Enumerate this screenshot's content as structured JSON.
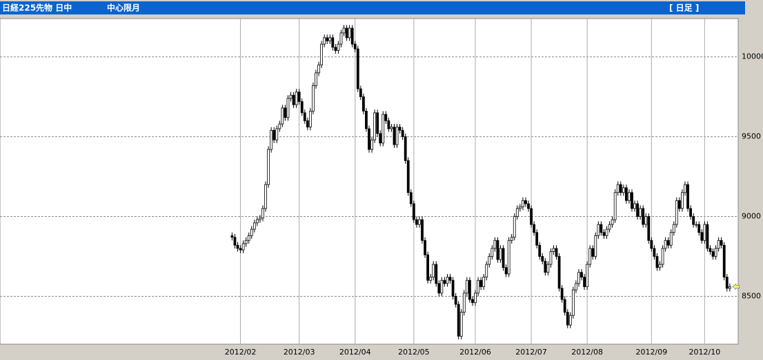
{
  "chart_data": {
    "type": "candlestick",
    "title": "日経225先物 日中",
    "subtitle": "中心限月",
    "annotation": "[ 日足 ]",
    "open": [
      8880,
      8870,
      8820,
      8800,
      8790,
      8830,
      8850,
      8880,
      8920,
      8960,
      8980,
      8990,
      9050,
      9200,
      9420,
      9540,
      9480,
      9550,
      9580,
      9680,
      9620,
      9740,
      9760,
      9700,
      9780,
      9720,
      9650,
      9600,
      9560,
      9660,
      9820,
      9900,
      9950,
      10080,
      10120,
      10100,
      10120,
      10060,
      10040,
      10080,
      10150,
      10180,
      10120,
      10180,
      10080,
      10050,
      9800,
      9750,
      9660,
      9550,
      9420,
      9480,
      9650,
      9520,
      9460,
      9640,
      9600,
      9550,
      9560,
      9450,
      9560,
      9540,
      9500,
      9350,
      9150,
      9080,
      8980,
      8950,
      8980,
      8850,
      8760,
      8600,
      8620,
      8700,
      8580,
      8520,
      8600,
      8580,
      8620,
      8600,
      8500,
      8450,
      8250,
      8400,
      8520,
      8600,
      8480,
      8460,
      8520,
      8600,
      8560,
      8620,
      8700,
      8750,
      8800,
      8850,
      8730,
      8800,
      8680,
      8640,
      8850,
      8870,
      9000,
      9050,
      9060,
      9100,
      9080,
      9050,
      8950,
      8900,
      8820,
      8750,
      8720,
      8650,
      8700,
      8780,
      8800,
      8750,
      8550,
      8480,
      8400,
      8320,
      8380,
      8540,
      8580,
      8650,
      8620,
      8560,
      8700,
      8800,
      8750,
      8880,
      8950,
      8900,
      8880,
      8920,
      8950,
      8980,
      9150,
      9200,
      9150,
      9180,
      9100,
      9150,
      9050,
      9080,
      9000,
      9050,
      8950,
      9000,
      8850,
      8800,
      8750,
      8680,
      8700,
      8800,
      8850,
      8820,
      8900,
      8950,
      9100,
      9050,
      9150,
      9200,
      9050,
      9000,
      8950,
      8950,
      8900,
      8850,
      8950,
      8800,
      8780,
      8750,
      8800,
      8850,
      8820,
      8620,
      8550
    ],
    "high": [
      8900,
      8890,
      8840,
      8820,
      8850,
      8870,
      8900,
      8940,
      8980,
      9000,
      9010,
      9070,
      9220,
      9440,
      9560,
      9560,
      9570,
      9600,
      9700,
      9700,
      9760,
      9780,
      9780,
      9800,
      9800,
      9740,
      9670,
      9620,
      9680,
      9840,
      9920,
      9970,
      10100,
      10140,
      10140,
      10140,
      10140,
      10080,
      10100,
      10170,
      10200,
      10200,
      10200,
      10200,
      10100,
      10070,
      9820,
      9770,
      9680,
      9570,
      9500,
      9670,
      9670,
      9540,
      9660,
      9660,
      9620,
      9580,
      9580,
      9580,
      9580,
      9560,
      9520,
      9370,
      9170,
      9100,
      9000,
      9000,
      9000,
      8870,
      8780,
      8640,
      8720,
      8720,
      8600,
      8620,
      8620,
      8640,
      8640,
      8620,
      8520,
      8470,
      8420,
      8540,
      8620,
      8620,
      8500,
      8540,
      8620,
      8620,
      8640,
      8720,
      8770,
      8820,
      8870,
      8870,
      8820,
      8820,
      8700,
      8870,
      8890,
      9020,
      9070,
      9080,
      9120,
      9120,
      9100,
      9070,
      8970,
      8920,
      8840,
      8770,
      8740,
      8720,
      8800,
      8820,
      8820,
      8770,
      8570,
      8500,
      8420,
      8400,
      8560,
      8600,
      8670,
      8670,
      8640,
      8720,
      8820,
      8820,
      8900,
      8970,
      8970,
      8920,
      8940,
      8970,
      9000,
      9170,
      9220,
      9220,
      9200,
      9200,
      9170,
      9170,
      9100,
      9100,
      9070,
      9070,
      9020,
      9020,
      8870,
      8820,
      8770,
      8720,
      8820,
      8870,
      8870,
      8920,
      8970,
      9120,
      9120,
      9170,
      9220,
      9220,
      9070,
      9020,
      8970,
      8970,
      8920,
      8970,
      8970,
      8820,
      8800,
      8820,
      8870,
      8870,
      8840,
      8640,
      8580
    ],
    "low": [
      8850,
      8800,
      8780,
      8770,
      8770,
      8810,
      8830,
      8860,
      8900,
      8940,
      8960,
      8970,
      9030,
      9180,
      9400,
      9460,
      9460,
      9530,
      9560,
      9600,
      9600,
      9720,
      9680,
      9680,
      9700,
      9630,
      9580,
      9540,
      9540,
      9640,
      9800,
      9880,
      9930,
      10060,
      10080,
      10080,
      10040,
      10020,
      10020,
      10060,
      10130,
      10100,
      10100,
      10060,
      10030,
      9780,
      9730,
      9640,
      9530,
      9400,
      9400,
      9460,
      9500,
      9440,
      9440,
      9580,
      9530,
      9530,
      9430,
      9430,
      9520,
      9480,
      9330,
      9130,
      9060,
      8960,
      8930,
      8930,
      8830,
      8740,
      8580,
      8580,
      8600,
      8560,
      8500,
      8500,
      8560,
      8560,
      8580,
      8480,
      8430,
      8230,
      8230,
      8380,
      8500,
      8460,
      8440,
      8440,
      8500,
      8540,
      8540,
      8600,
      8680,
      8730,
      8780,
      8710,
      8710,
      8660,
      8620,
      8620,
      8830,
      8850,
      8980,
      9030,
      9040,
      9060,
      9030,
      8930,
      8880,
      8800,
      8730,
      8700,
      8630,
      8630,
      8680,
      8760,
      8730,
      8530,
      8460,
      8380,
      8300,
      8300,
      8360,
      8520,
      8560,
      8600,
      8540,
      8540,
      8680,
      8730,
      8730,
      8860,
      8880,
      8860,
      8860,
      8900,
      8930,
      8960,
      9130,
      9130,
      9130,
      9080,
      9080,
      9030,
      9030,
      8980,
      8980,
      8930,
      8930,
      8830,
      8780,
      8730,
      8660,
      8660,
      8680,
      8780,
      8800,
      8800,
      8880,
      8930,
      9030,
      9030,
      9130,
      9030,
      8980,
      8930,
      8930,
      8880,
      8830,
      8830,
      8780,
      8760,
      8730,
      8730,
      8780,
      8800,
      8600,
      8530,
      8530
    ],
    "close": [
      8870,
      8820,
      8800,
      8790,
      8830,
      8850,
      8880,
      8920,
      8960,
      8980,
      8990,
      9050,
      9200,
      9420,
      9540,
      9480,
      9550,
      9580,
      9680,
      9620,
      9740,
      9760,
      9700,
      9780,
      9720,
      9650,
      9600,
      9560,
      9660,
      9820,
      9900,
      9950,
      10080,
      10120,
      10100,
      10120,
      10060,
      10040,
      10080,
      10150,
      10180,
      10120,
      10180,
      10080,
      10050,
      9800,
      9750,
      9660,
      9550,
      9420,
      9480,
      9650,
      9520,
      9460,
      9640,
      9600,
      9550,
      9560,
      9450,
      9560,
      9540,
      9500,
      9350,
      9150,
      9080,
      8980,
      8950,
      8980,
      8850,
      8760,
      8600,
      8620,
      8700,
      8580,
      8520,
      8600,
      8580,
      8620,
      8600,
      8500,
      8450,
      8250,
      8400,
      8520,
      8600,
      8480,
      8460,
      8520,
      8600,
      8560,
      8620,
      8700,
      8750,
      8800,
      8850,
      8730,
      8800,
      8680,
      8640,
      8850,
      8870,
      9000,
      9050,
      9060,
      9100,
      9080,
      9050,
      8950,
      8900,
      8820,
      8750,
      8720,
      8650,
      8700,
      8780,
      8800,
      8750,
      8550,
      8480,
      8400,
      8320,
      8380,
      8540,
      8580,
      8650,
      8620,
      8560,
      8700,
      8800,
      8750,
      8880,
      8950,
      8900,
      8880,
      8920,
      8950,
      8980,
      9150,
      9200,
      9150,
      9180,
      9100,
      9150,
      9050,
      9080,
      9000,
      9050,
      8950,
      9000,
      8850,
      8800,
      8750,
      8680,
      8700,
      8800,
      8850,
      8820,
      8900,
      8950,
      9100,
      9050,
      9150,
      9200,
      9050,
      9000,
      8950,
      8950,
      8900,
      8850,
      8950,
      8800,
      8780,
      8750,
      8800,
      8850,
      8820,
      8620,
      8550,
      8560
    ],
    "xlim": [
      -83,
      181
    ],
    "xticks": [
      {
        "value": 3,
        "label": "2012/02"
      },
      {
        "value": 24,
        "label": "2012/03"
      },
      {
        "value": 44,
        "label": "2012/04"
      },
      {
        "value": 65,
        "label": "2012/05"
      },
      {
        "value": 87,
        "label": "2012/06"
      },
      {
        "value": 107,
        "label": "2012/07"
      },
      {
        "value": 127,
        "label": "2012/08"
      },
      {
        "value": 150,
        "label": "2012/09"
      },
      {
        "value": 169,
        "label": "2012/10"
      }
    ],
    "ylim": [
      8200,
      10240
    ],
    "yticks": [
      8500,
      9000,
      9500,
      10000
    ],
    "up_color": "#ffffff",
    "down_color": "#000000",
    "grid": true
  }
}
